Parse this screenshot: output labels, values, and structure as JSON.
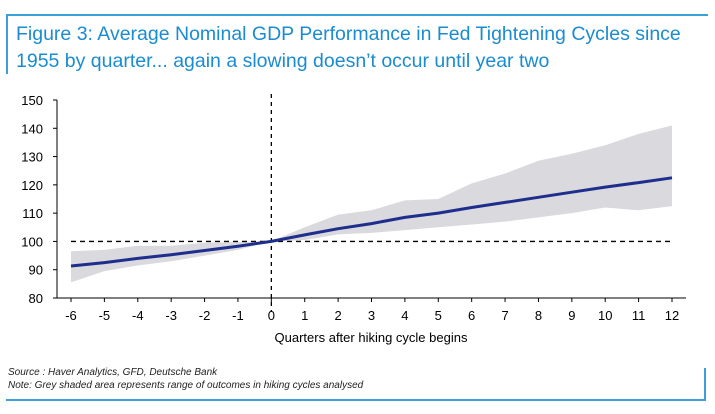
{
  "figure": {
    "title_line1": "Figure 3: Average Nominal GDP Performance in Fed Tightening Cycles since",
    "title_line2": "1955 by quarter... again a slowing doesn’t occur until year two",
    "source": "Source : Haver Analytics, GFD, Deutsche Bank",
    "note": "Note: Grey shaded area represents range of outcomes in hiking cycles analysed"
  },
  "colors": {
    "accent": "#1a8ccf",
    "frame": "#3aa0d8",
    "line": "#1f2e8c",
    "band": "#d9d9de"
  },
  "chart_data": {
    "type": "line",
    "title": "Figure 3: Average Nominal GDP Performance in Fed Tightening Cycles since 1955 by quarter... again a slowing doesn’t occur until year two",
    "xlabel": "Quarters after hiking cycle begins",
    "ylabel": "",
    "x": [
      -6,
      -5,
      -4,
      -3,
      -2,
      -1,
      0,
      1,
      2,
      3,
      4,
      5,
      6,
      7,
      8,
      9,
      10,
      11,
      12
    ],
    "ylim": [
      80,
      150
    ],
    "yticks": [
      80,
      90,
      100,
      110,
      120,
      130,
      140,
      150
    ],
    "xticks": [
      -6,
      -5,
      -4,
      -3,
      -2,
      -1,
      0,
      1,
      2,
      3,
      4,
      5,
      6,
      7,
      8,
      9,
      10,
      11,
      12
    ],
    "series": [
      {
        "values": [
          91.3,
          92.5,
          94.0,
          95.3,
          96.8,
          98.3,
          100,
          102.3,
          104.5,
          106.3,
          108.5,
          110.0,
          112.0,
          113.8,
          115.6,
          117.4,
          119.2,
          120.8,
          122.5
        ]
      }
    ],
    "range_band": {
      "upper": [
        96.5,
        97.0,
        98.5,
        98.5,
        99.5,
        99.8,
        100,
        105.0,
        109.5,
        111.0,
        114.5,
        115.0,
        120.5,
        124.0,
        128.5,
        131.0,
        134.0,
        138.0,
        141.0
      ],
      "lower": [
        85.5,
        89.5,
        91.5,
        93.0,
        95.0,
        97.0,
        100,
        100.5,
        102.5,
        103.0,
        104.0,
        105.0,
        106.0,
        107.0,
        108.5,
        110.0,
        112.0,
        111.0,
        112.5
      ]
    },
    "reference_lines": {
      "horizontal_y": 100,
      "vertical_x": 0
    },
    "grid": false,
    "legend": "none"
  }
}
